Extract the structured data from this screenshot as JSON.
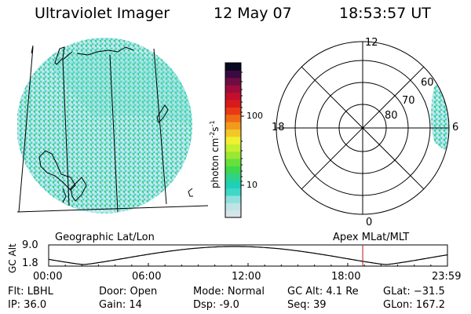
{
  "header": {
    "instrument": "Ultraviolet Imager",
    "date": "12 May 07",
    "time": "18:53:57 UT"
  },
  "left_panel": {
    "label": "Geographic Lat/Lon"
  },
  "right_panel": {
    "label": "Apex MLat/MLT",
    "mlt_labels": {
      "top": "12",
      "left": "18",
      "right": "6",
      "bottom": "0"
    },
    "lat_labels": [
      "60",
      "70",
      "80"
    ]
  },
  "colorbar": {
    "unit": "photon cm",
    "unit_exp1": "-2",
    "unit_s": "s",
    "unit_exp2": "-1",
    "scale": "log",
    "ticks": [
      {
        "label": "100",
        "value": 100
      },
      {
        "label": "10",
        "value": 10
      }
    ],
    "colors": [
      "#d6e4ea",
      "#bfe3e7",
      "#8fe0dc",
      "#3fd7c8",
      "#1fd0b8",
      "#30d28a",
      "#3ed84c",
      "#66e03a",
      "#9ae834",
      "#c6ef30",
      "#f0f032",
      "#f2c828",
      "#f39a1c",
      "#ef6a16",
      "#e83a14",
      "#d81a1c",
      "#c0102c",
      "#9e0c3c",
      "#700c44",
      "#3a0a40",
      "#0a0820"
    ]
  },
  "timeline": {
    "ylabel": "GC Alt",
    "y_ticks": [
      "9.0",
      "1.8"
    ],
    "x_ticks": [
      "00:00",
      "06:00",
      "12:00",
      "18:00",
      "23:59"
    ],
    "marker_hour": 18.9,
    "marker_color": "#b01818"
  },
  "footer": {
    "filter": "Flt: LBHL",
    "ip": "IP: 36.0",
    "door": "Door: Open",
    "gain": "Gain: 14",
    "mode": "Mode: Normal",
    "dsp": "Dsp:   -9.0",
    "gc_alt": "GC Alt: 4.1 Re",
    "seq": "Seq: 39",
    "glat": "GLat: −31.5",
    "glon": "GLon: 167.2"
  }
}
